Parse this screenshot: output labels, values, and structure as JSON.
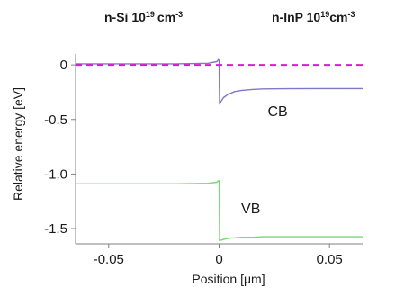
{
  "chart_data": {
    "type": "line",
    "header": {
      "left": {
        "text": "n-Si 10",
        "sup": "19",
        "unit": "cm",
        "unit_sup": "-3"
      },
      "right": {
        "text": "n-InP 10",
        "sup": "19",
        "unit": "cm",
        "unit_sup": "-3"
      }
    },
    "xlabel": "Position [μm]",
    "ylabel": "Relative energy  [eV]",
    "xlim": [
      -0.065,
      0.065
    ],
    "ylim": [
      -1.64,
      0.1
    ],
    "xticks": [
      -0.05,
      0,
      0.05
    ],
    "xtick_labels": [
      "-0.05",
      "0",
      "0.05"
    ],
    "yticks": [
      0,
      -0.5,
      -1.0,
      -1.5
    ],
    "ytick_labels": [
      "0",
      "-0.5",
      "-1.0",
      "-1.5"
    ],
    "grid": false,
    "annotations": [
      {
        "text": "CB",
        "x": 0.022,
        "y": -0.47
      },
      {
        "text": "VB",
        "x": 0.01,
        "y": -1.36
      }
    ],
    "series": [
      {
        "color": "#7f78c4",
        "x": [
          -0.065,
          -0.02,
          -0.005,
          -0.001,
          -0.0003,
          0.0,
          0.0002,
          0.001,
          0.002,
          0.004,
          0.007,
          0.01,
          0.015,
          0.02,
          0.03,
          0.045,
          0.065
        ],
        "y": [
          0.01,
          0.01,
          0.015,
          0.03,
          0.05,
          0.04,
          -0.36,
          -0.33,
          -0.3,
          -0.27,
          -0.245,
          -0.235,
          -0.225,
          -0.22,
          -0.218,
          -0.217,
          -0.217
        ]
      },
      {
        "color": "#7dd47d",
        "x": [
          -0.065,
          -0.02,
          -0.005,
          -0.001,
          -0.0003,
          0.0,
          0.0002,
          0.001,
          0.002,
          0.004,
          0.007,
          0.01,
          0.015,
          0.02,
          0.03,
          0.045,
          0.065
        ],
        "y": [
          -1.09,
          -1.09,
          -1.085,
          -1.075,
          -1.06,
          -1.06,
          -1.61,
          -1.605,
          -1.6,
          -1.59,
          -1.585,
          -1.58,
          -1.58,
          -1.575,
          -1.575,
          -1.575,
          -1.575
        ]
      },
      {
        "color": "#d81bd8",
        "dashed": true,
        "x": [
          -0.065,
          0.065
        ],
        "y": [
          0.0,
          0.0
        ]
      }
    ]
  }
}
